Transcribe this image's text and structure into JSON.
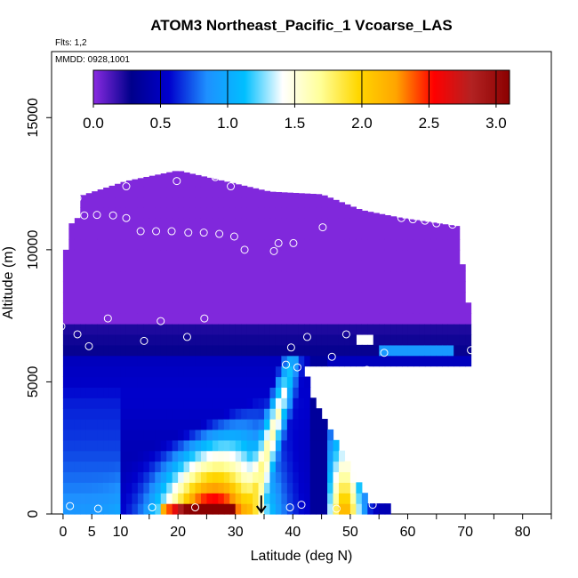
{
  "chart_data": {
    "type": "heatmap",
    "title": "ATOM3 Northeast_Pacific_1 Vcoarse_LAS",
    "flights_label": "Flts: 1,2",
    "dates_label": "MMDD: 0928,1001",
    "xlabel": "Latitude (deg N)",
    "ylabel": "Altitude (m)",
    "xlim": [
      -2,
      85
    ],
    "ylim": [
      0,
      17500
    ],
    "x_ticks": [
      0,
      5,
      10,
      20,
      30,
      40,
      50,
      60,
      70,
      80
    ],
    "y_ticks": [
      0,
      5000,
      10000,
      15000
    ],
    "colorbar": {
      "range": [
        0,
        3.1
      ],
      "ticks": [
        "0.0",
        "0.5",
        "1.0",
        "1.5",
        "2.0",
        "2.5",
        "3.0"
      ],
      "colors": [
        "#8a2be2",
        "#00008b",
        "#0000cd",
        "#1e90ff",
        "#00bfff",
        "#ffffff",
        "#ffff99",
        "#ffd700",
        "#ffa500",
        "#ff0000",
        "#b22222",
        "#8b0000"
      ]
    },
    "grid": false,
    "marker_latitude": 34.5,
    "sample_points": [
      {
        "x": -0.3,
        "y": 7100
      },
      {
        "x": 1.2,
        "y": 300
      },
      {
        "x": 2.5,
        "y": 6800
      },
      {
        "x": 2.5,
        "y": 11950
      },
      {
        "x": 3.7,
        "y": 11300
      },
      {
        "x": 4.5,
        "y": 6350
      },
      {
        "x": 5.9,
        "y": 11320
      },
      {
        "x": 6.1,
        "y": 200
      },
      {
        "x": 7.8,
        "y": 7400
      },
      {
        "x": 8.7,
        "y": 11300
      },
      {
        "x": 11,
        "y": 11200
      },
      {
        "x": 11,
        "y": 12400
      },
      {
        "x": 13.5,
        "y": 10700
      },
      {
        "x": 14.1,
        "y": 6550
      },
      {
        "x": 15.5,
        "y": 250
      },
      {
        "x": 16.2,
        "y": 10700
      },
      {
        "x": 17,
        "y": 7300
      },
      {
        "x": 18.9,
        "y": 10700
      },
      {
        "x": 19.8,
        "y": 12600
      },
      {
        "x": 21.6,
        "y": 6700
      },
      {
        "x": 21.8,
        "y": 10650
      },
      {
        "x": 23,
        "y": 250
      },
      {
        "x": 24.5,
        "y": 10650
      },
      {
        "x": 24.6,
        "y": 7400
      },
      {
        "x": 26.5,
        "y": 12750
      },
      {
        "x": 27.2,
        "y": 10600
      },
      {
        "x": 29.2,
        "y": 12400
      },
      {
        "x": 29.8,
        "y": 10500
      },
      {
        "x": 31.6,
        "y": 10000
      },
      {
        "x": 36.7,
        "y": 9950
      },
      {
        "x": 37.5,
        "y": 10250
      },
      {
        "x": 38.8,
        "y": 5650
      },
      {
        "x": 39.5,
        "y": 250
      },
      {
        "x": 39.7,
        "y": 6300
      },
      {
        "x": 40.1,
        "y": 10250
      },
      {
        "x": 40.8,
        "y": 5550
      },
      {
        "x": 41.5,
        "y": 350
      },
      {
        "x": 42.5,
        "y": 6700
      },
      {
        "x": 45.2,
        "y": 10850
      },
      {
        "x": 46.8,
        "y": 5950
      },
      {
        "x": 47.6,
        "y": 200
      },
      {
        "x": 49.3,
        "y": 6800
      },
      {
        "x": 52.9,
        "y": 5450
      },
      {
        "x": 53.9,
        "y": 350
      },
      {
        "x": 55.9,
        "y": 6100
      },
      {
        "x": 58.9,
        "y": 11200
      },
      {
        "x": 60.9,
        "y": 11150
      },
      {
        "x": 63,
        "y": 11100
      },
      {
        "x": 65,
        "y": 11000
      },
      {
        "x": 67.8,
        "y": 10950
      },
      {
        "x": 71,
        "y": 6200
      }
    ],
    "profiles": [
      {
        "lat": 0,
        "top": 9500
      },
      {
        "lat": 2.5,
        "top": 12000
      },
      {
        "lat": 11,
        "top": 12600
      },
      {
        "lat": 20,
        "top": 13000
      },
      {
        "lat": 30,
        "top": 12500
      },
      {
        "lat": 36,
        "top": 12200
      },
      {
        "lat": 45,
        "top": 12100
      },
      {
        "lat": 52,
        "top": 11500
      },
      {
        "lat": 59,
        "top": 11200
      },
      {
        "lat": 68.5,
        "top": 10900
      },
      {
        "lat": 70.5,
        "top": 8000
      }
    ]
  }
}
